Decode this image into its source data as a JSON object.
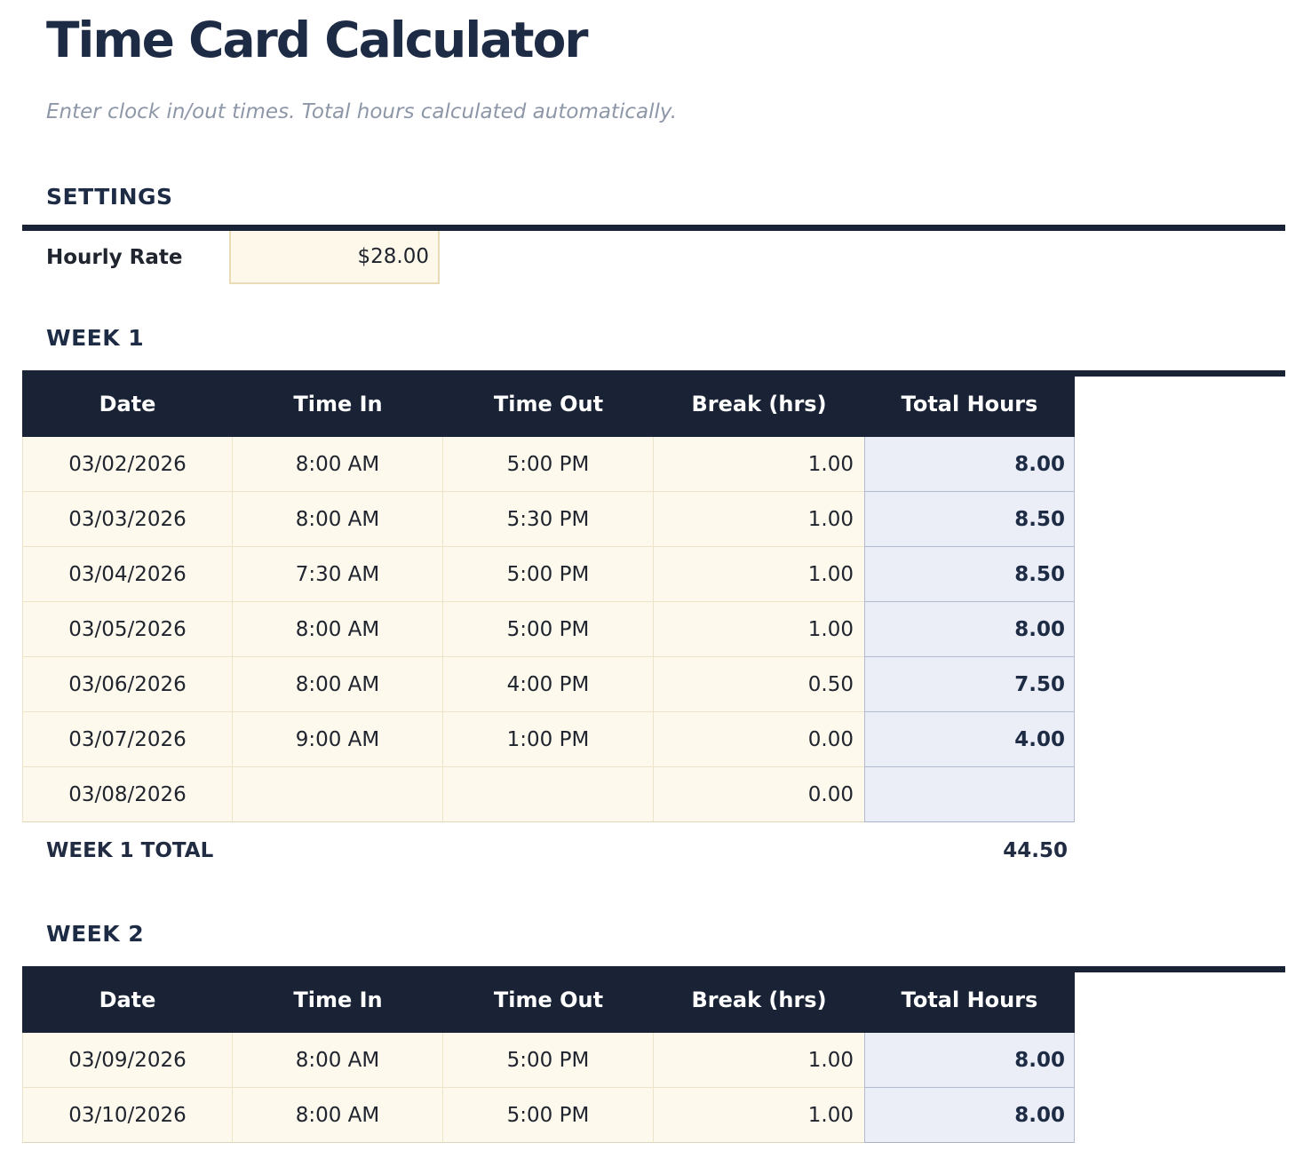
{
  "header": {
    "title": "Time Card Calculator",
    "subtitle": "Enter clock in/out times. Total hours calculated automatically."
  },
  "settings": {
    "heading": "SETTINGS",
    "hourly_rate_label": "Hourly Rate",
    "hourly_rate_value": "$28.00"
  },
  "table_columns": [
    "Date",
    "Time In",
    "Time Out",
    "Break (hrs)",
    "Total Hours"
  ],
  "week1": {
    "heading": "WEEK 1",
    "rows": [
      {
        "date": "03/02/2026",
        "time_in": "8:00 AM",
        "time_out": "5:00 PM",
        "break": "1.00",
        "total": "8.00"
      },
      {
        "date": "03/03/2026",
        "time_in": "8:00 AM",
        "time_out": "5:30 PM",
        "break": "1.00",
        "total": "8.50"
      },
      {
        "date": "03/04/2026",
        "time_in": "7:30 AM",
        "time_out": "5:00 PM",
        "break": "1.00",
        "total": "8.50"
      },
      {
        "date": "03/05/2026",
        "time_in": "8:00 AM",
        "time_out": "5:00 PM",
        "break": "1.00",
        "total": "8.00"
      },
      {
        "date": "03/06/2026",
        "time_in": "8:00 AM",
        "time_out": "4:00 PM",
        "break": "0.50",
        "total": "7.50"
      },
      {
        "date": "03/07/2026",
        "time_in": "9:00 AM",
        "time_out": "1:00 PM",
        "break": "0.00",
        "total": "4.00"
      },
      {
        "date": "03/08/2026",
        "time_in": "",
        "time_out": "",
        "break": "0.00",
        "total": ""
      }
    ],
    "total_label": "WEEK 1 TOTAL",
    "total_value": "44.50"
  },
  "week2": {
    "heading": "WEEK 2",
    "rows": [
      {
        "date": "03/09/2026",
        "time_in": "8:00 AM",
        "time_out": "5:00 PM",
        "break": "1.00",
        "total": "8.00"
      },
      {
        "date": "03/10/2026",
        "time_in": "8:00 AM",
        "time_out": "5:00 PM",
        "break": "1.00",
        "total": "8.00"
      }
    ]
  },
  "colors": {
    "navy": "#1a2335",
    "heading_navy": "#1d2b45",
    "cream": "#fdf9ec",
    "cream_border": "#ece3c8",
    "input_border": "#e7dcb6",
    "lavender": "#ebeef7",
    "lavender_border": "#b3bbd0",
    "subtitle_gray": "#8e97a8"
  }
}
